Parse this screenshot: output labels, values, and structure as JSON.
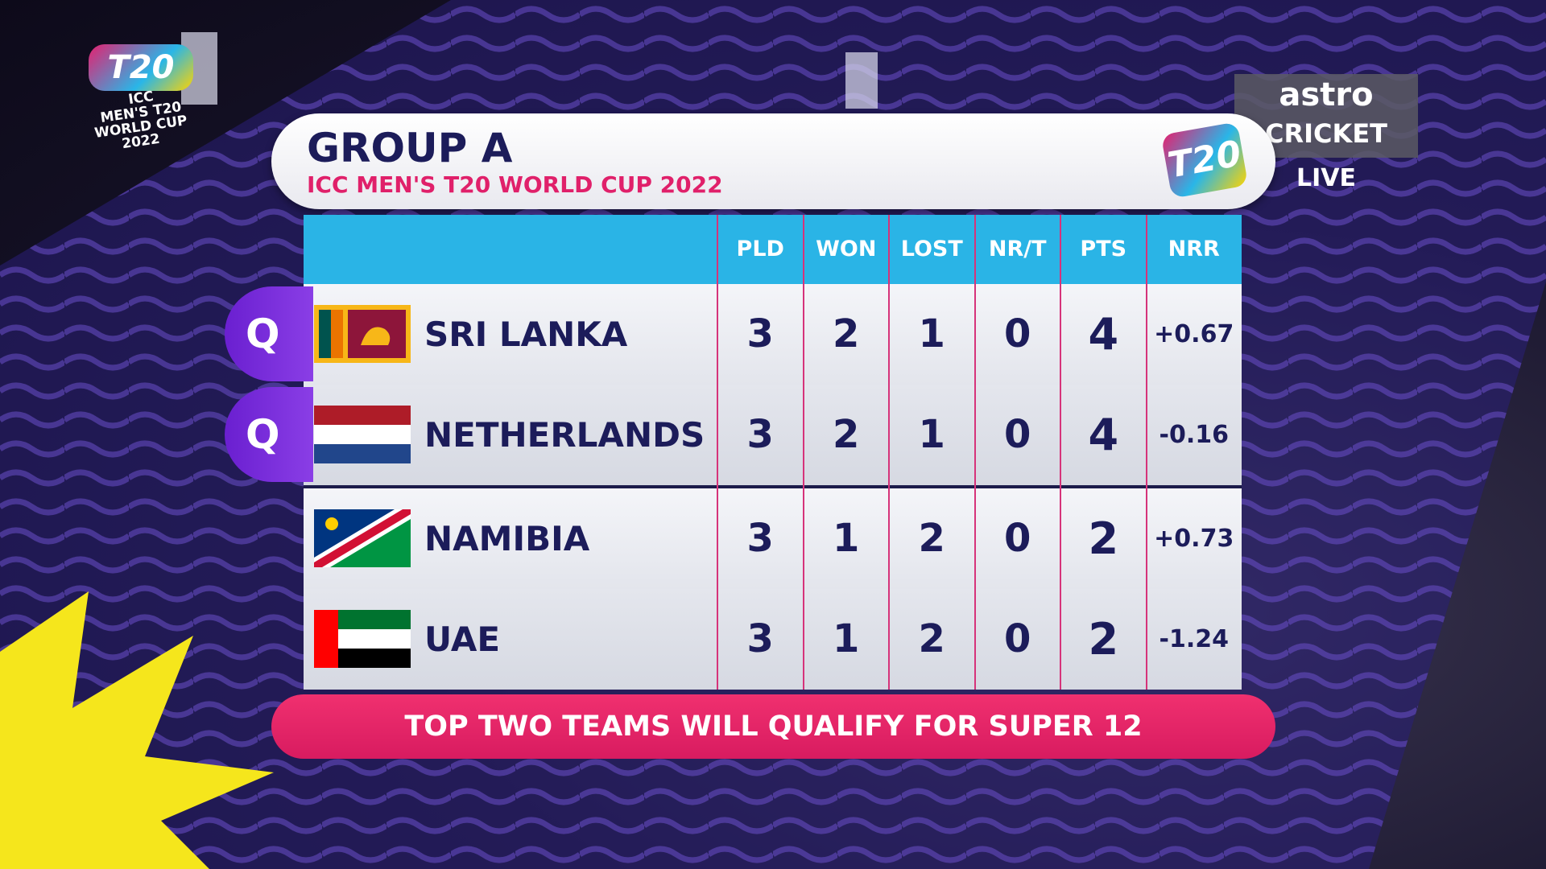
{
  "logo": {
    "badge": "T20",
    "lines": [
      "ICC",
      "MEN'S T20",
      "WORLD CUP",
      "2022"
    ]
  },
  "broadcaster": {
    "name": "astro",
    "channel": "CRICKET",
    "status": "LIVE"
  },
  "header": {
    "title": "GROUP A",
    "subtitle": "ICC MEN'S T20 WORLD CUP 2022",
    "badge": "T20"
  },
  "table": {
    "columns": [
      "PLD",
      "WON",
      "LOST",
      "NR/T",
      "PTS",
      "NRR"
    ],
    "rows": [
      {
        "qualified": "Q",
        "team": "SRI LANKA",
        "stats": [
          3,
          2,
          1,
          0,
          4,
          "+0.67"
        ]
      },
      {
        "qualified": "Q",
        "team": "NETHERLANDS",
        "stats": [
          3,
          2,
          1,
          0,
          4,
          "-0.16"
        ]
      },
      {
        "team": "NAMIBIA",
        "stats": [
          3,
          1,
          2,
          0,
          2,
          "+0.73"
        ]
      },
      {
        "team": "UAE",
        "stats": [
          3,
          1,
          2,
          0,
          2,
          "-1.24"
        ]
      }
    ]
  },
  "footer": "TOP TWO TEAMS WILL QUALIFY FOR SUPER 12"
}
